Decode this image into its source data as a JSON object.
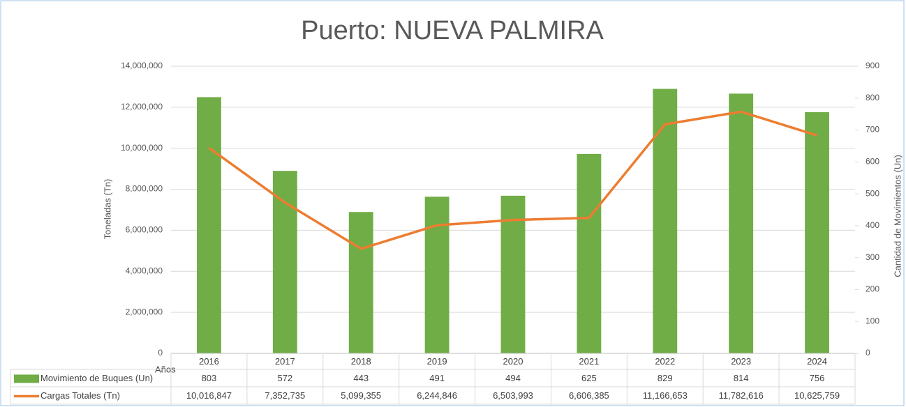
{
  "chart_data": {
    "type": "combo",
    "title": "Puerto: NUEVA PALMIRA",
    "x_label": "Años",
    "y_label": "Toneladas (Tn)",
    "y2_label": "Cantidad de Movimientos (Un)",
    "categories": [
      "2016",
      "2017",
      "2018",
      "2019",
      "2020",
      "2021",
      "2022",
      "2023",
      "2024"
    ],
    "series": [
      {
        "name": "Movimiento de Buques (Un)",
        "type": "bar",
        "axis": "y2",
        "color": "#70ad47",
        "values": [
          803,
          572,
          443,
          491,
          494,
          625,
          829,
          814,
          756
        ]
      },
      {
        "name": "Cargas Totales (Tn)",
        "type": "line",
        "color": "#ed7d31",
        "values": [
          10016847,
          7352735,
          5099355,
          6244846,
          6503993,
          6606385,
          11166653,
          11782616,
          10625759
        ],
        "value_labels": [
          "10,016,847",
          "7,352,735",
          "5,099,355",
          "6,244,846",
          "6,503,993",
          "6,606,385",
          "11,166,653",
          "11,782,616",
          "10,625,759"
        ]
      }
    ],
    "ylim": [
      0,
      14000000
    ],
    "yticks": [
      0,
      {
        "value": 2000000,
        "label": "2,000,000"
      },
      {
        "value": 4000000,
        "label": "4,000,000"
      },
      {
        "value": 6000000,
        "label": "6,000,000"
      },
      {
        "value": 8000000,
        "label": "8,000,000"
      },
      {
        "value": 10000000,
        "label": "10,000,000"
      },
      {
        "value": 12000000,
        "label": "12,000,000"
      },
      {
        "value": 14000000,
        "label": "14,000,000"
      }
    ],
    "y2lim": [
      0,
      900
    ],
    "y2ticks": [
      0,
      100,
      200,
      300,
      400,
      500,
      600,
      700,
      800,
      900
    ],
    "grid": true,
    "data_table": true
  }
}
